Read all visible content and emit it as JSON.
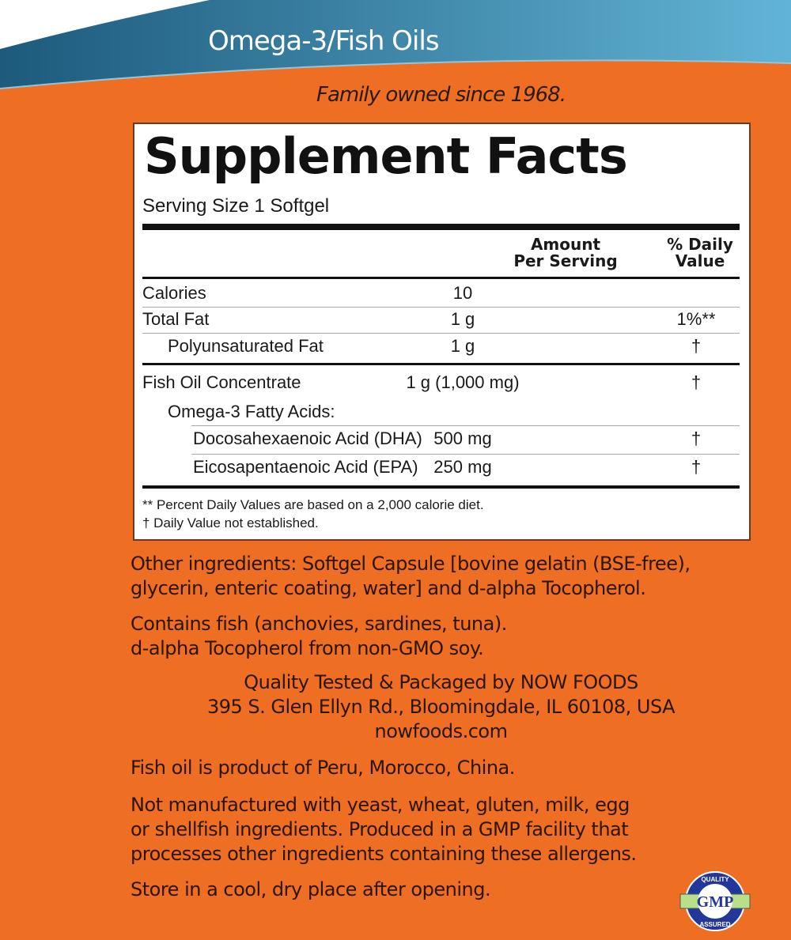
{
  "header": {
    "title": "Omega-3/Fish Oils",
    "tagline": "Family owned since 1968."
  },
  "facts": {
    "title": "Supplement Facts",
    "serving": "Serving Size 1 Softgel",
    "col_amount": [
      "Amount",
      "Per Serving"
    ],
    "col_dv": [
      "% Daily",
      "Value"
    ],
    "rows": [
      {
        "name": "Calories",
        "amount": "10",
        "dv": ""
      },
      {
        "name": "Total Fat",
        "amount": "1 g",
        "dv": "1%**"
      },
      {
        "name": "Polyunsaturated Fat",
        "amount": "1 g",
        "dv": "†"
      },
      {
        "name": "Fish Oil Concentrate",
        "amount": "1 g (1,000 mg)",
        "dv": "†"
      },
      {
        "name": "Omega-3 Fatty Acids:",
        "amount": "",
        "dv": ""
      },
      {
        "name": "Docosahexaenoic Acid (DHA)",
        "amount": "500 mg",
        "dv": "†"
      },
      {
        "name": "Eicosapentaenoic Acid (EPA)",
        "amount": "250 mg",
        "dv": "†"
      }
    ],
    "footnotes": [
      "** Percent Daily Values are based on a 2,000 calorie diet.",
      "† Daily Value not established."
    ]
  },
  "text": {
    "other": [
      "Other ingredients: Softgel Capsule [bovine gelatin (BSE-free),",
      "glycerin, enteric coating, water] and d-alpha Tocopherol."
    ],
    "contains": [
      "Contains fish (anchovies, sardines, tuna).",
      "d-alpha Tocopherol from non-GMO soy."
    ],
    "company": [
      "Quality Tested & Packaged by NOW FOODS",
      "395 S. Glen Ellyn Rd., Bloomingdale, IL 60108, USA",
      "nowfoods.com"
    ],
    "origin": "Fish oil is product of Peru, Morocco, China.",
    "allergens": [
      "Not manufactured with yeast, wheat, gluten, milk, egg",
      "or shellfish ingredients. Produced in a GMP facility that",
      "processes other ingredients containing these allergens."
    ],
    "storage": "Store in a cool, dry place after opening."
  },
  "seal": {
    "top": "QUALITY",
    "center": "GMP",
    "bottom": "ASSURED"
  },
  "colors": {
    "background": "#ee6e23",
    "banner_dark": "#1d5a7c",
    "banner_light": "#62b4d6"
  }
}
